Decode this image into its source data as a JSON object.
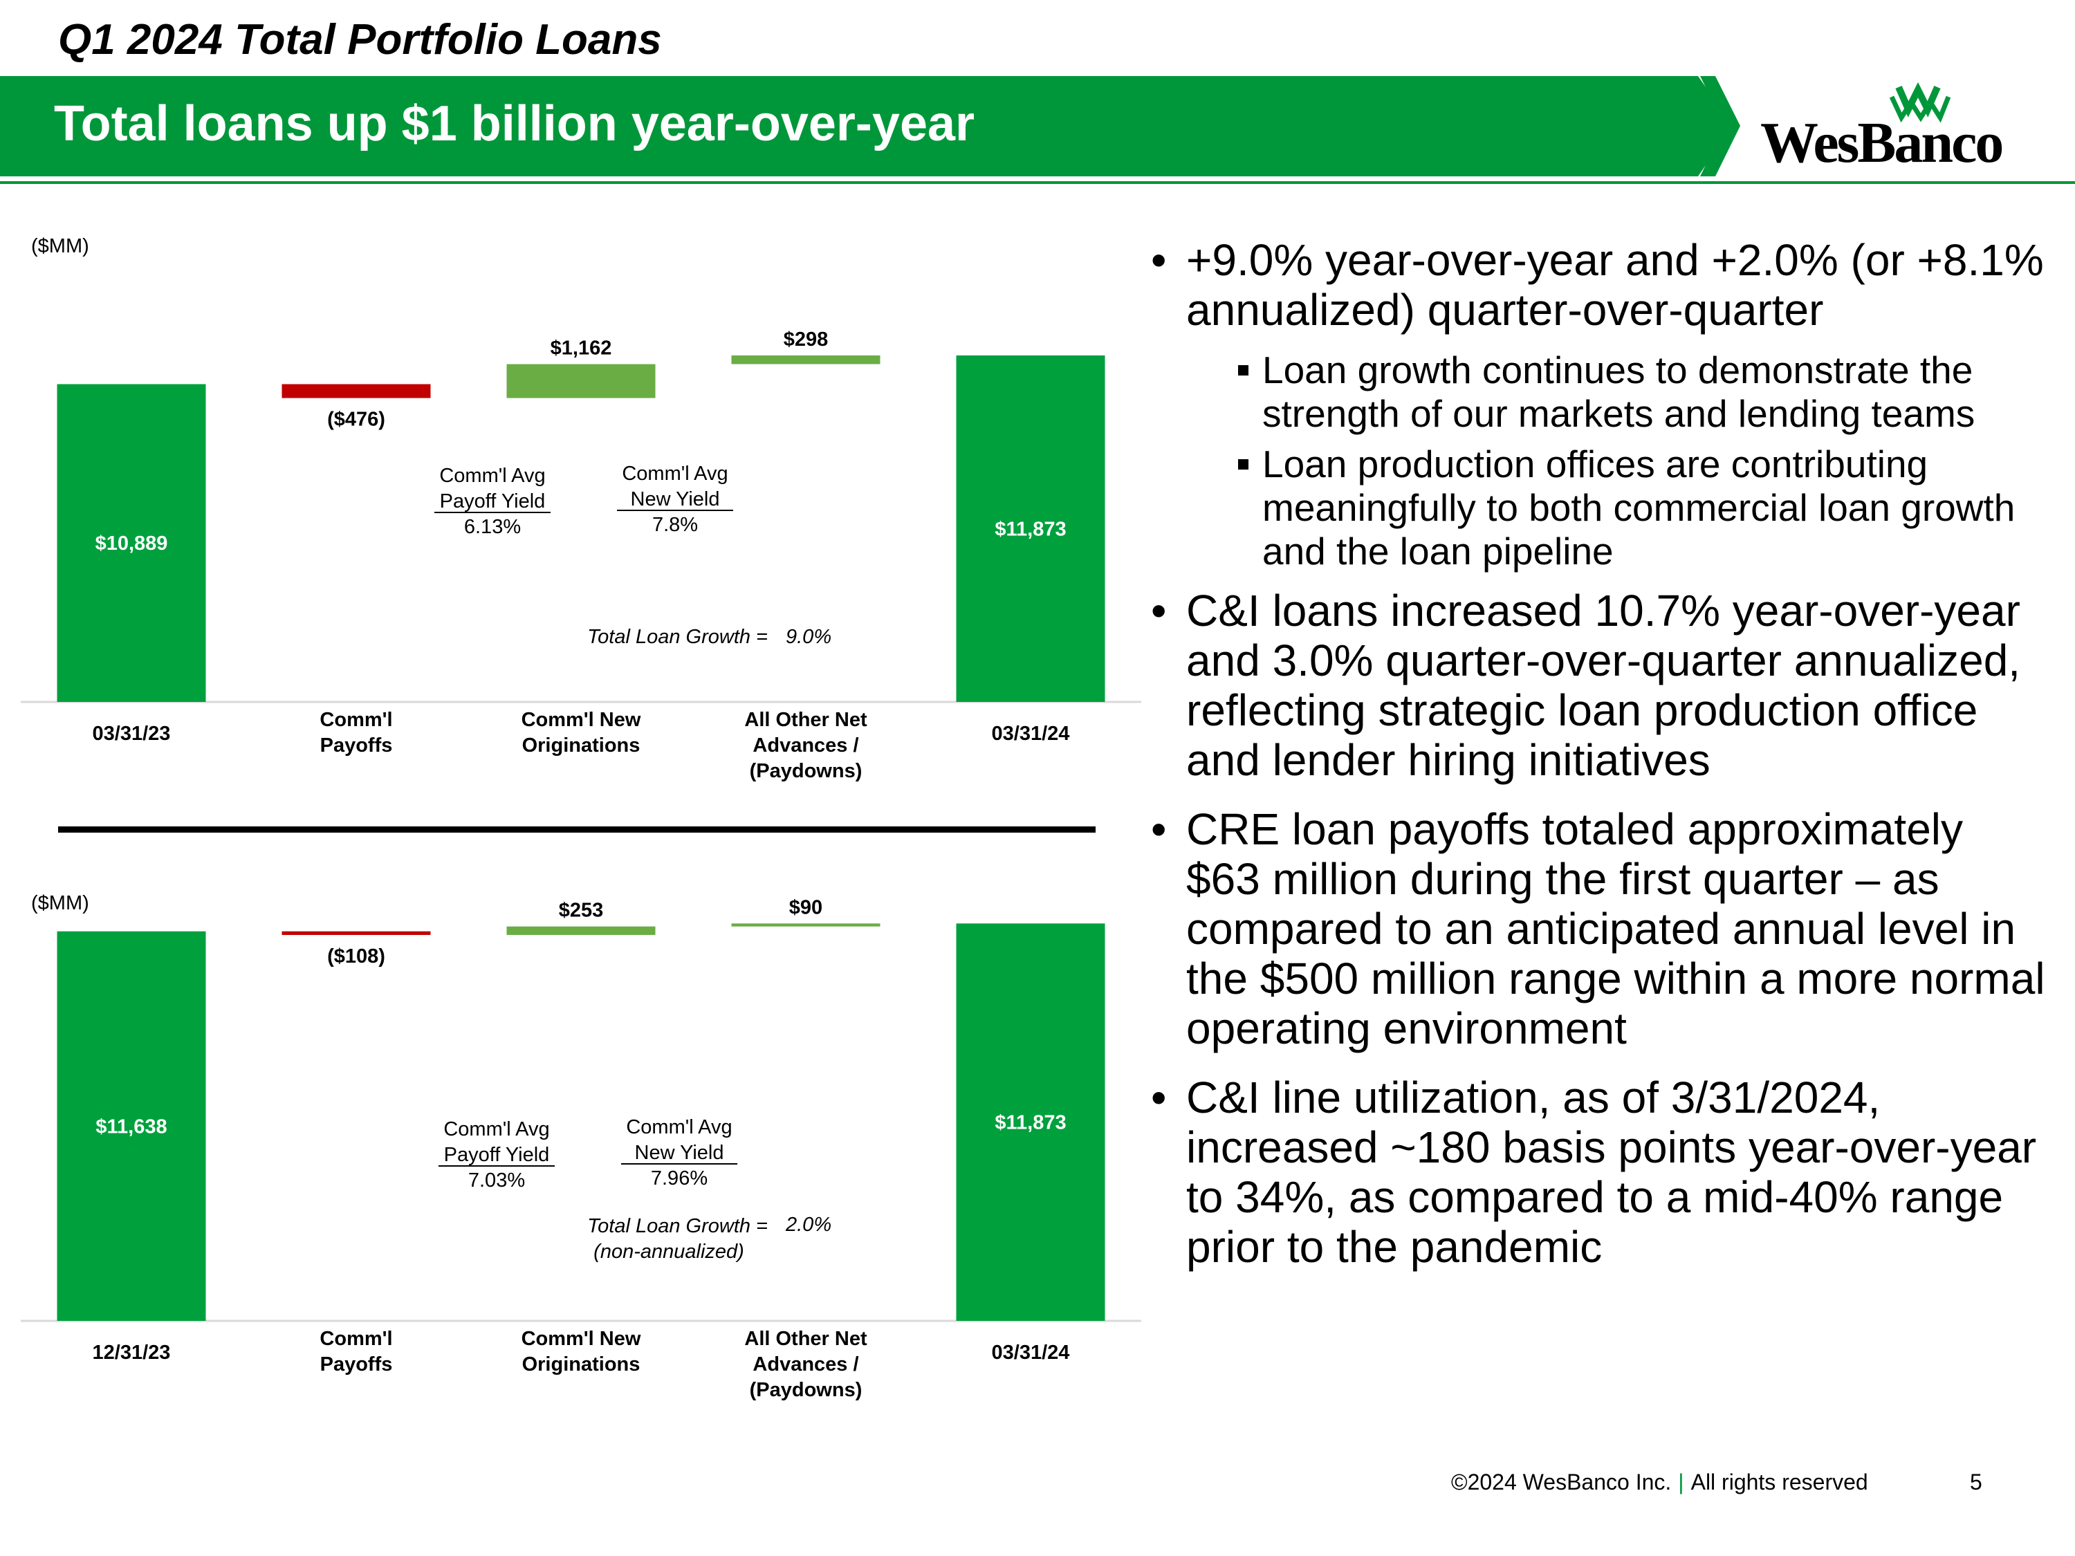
{
  "header": {
    "title": "Q1 2024 Total Portfolio Loans",
    "banner": "Total loans up $1 billion year-over-year",
    "logo_text": "WesBanco",
    "logo_icon": "wesbanco-w-mark-icon",
    "accent_color": "#00973a"
  },
  "chart_data": [
    {
      "type": "waterfall",
      "unit_label": "($MM)",
      "categories": [
        "03/31/23",
        "Comm'l Payoffs",
        "Comm'l New Originations",
        "All Other Net Advances / (Paydowns)",
        "03/31/24"
      ],
      "values": [
        10889,
        -476,
        1162,
        298,
        11873
      ],
      "data_labels": [
        "$10,889",
        "($476)",
        "$1,162",
        "$298",
        "$11,873"
      ],
      "colors": [
        "#00a03d",
        "#c00000",
        "#6bad45",
        "#6bad45",
        "#00a03d"
      ],
      "annotations": {
        "payoff_yield": [
          "Comm'l Avg",
          "Payoff Yield",
          "6.13%"
        ],
        "new_yield": [
          "Comm'l Avg",
          "New Yield",
          "7.8%"
        ],
        "growth_label": "Total Loan Growth =",
        "growth_sub": "",
        "growth_value": "9.0%"
      }
    },
    {
      "type": "waterfall",
      "unit_label": "($MM)",
      "categories": [
        "12/31/23",
        "Comm'l Payoffs",
        "Comm'l New Originations",
        "All Other Net Advances / (Paydowns)",
        "03/31/24"
      ],
      "values": [
        11638,
        -108,
        253,
        90,
        11873
      ],
      "data_labels": [
        "$11,638",
        "($108)",
        "$253",
        "$90",
        "$11,873"
      ],
      "colors": [
        "#00a03d",
        "#c00000",
        "#6bad45",
        "#6bad45",
        "#00a03d"
      ],
      "annotations": {
        "payoff_yield": [
          "Comm'l Avg",
          "Payoff Yield",
          "7.03%"
        ],
        "new_yield": [
          "Comm'l Avg",
          "New Yield",
          "7.96%"
        ],
        "growth_label": "Total Loan Growth =",
        "growth_sub": "(non-annualized)",
        "growth_value": "2.0%"
      }
    }
  ],
  "bullets": [
    {
      "text": "+9.0% year-over-year and +2.0% (or +8.1% annualized) quarter-over-quarter",
      "sub": [
        "Loan growth continues to demonstrate the strength of our markets and lending teams",
        "Loan production offices are contributing meaningfully to both commercial loan growth and the loan pipeline"
      ]
    },
    {
      "text": "C&I loans increased 10.7% year-over-year and 3.0% quarter-over-quarter annualized, reflecting strategic loan production office and lender hiring initiatives",
      "sub": []
    },
    {
      "text": "CRE loan payoffs totaled approximately $63 million during the first quarter – as compared to an anticipated annual level in the $500 million range within a more normal operating environment",
      "sub": []
    },
    {
      "text": "C&I line utilization, as of 3/31/2024, increased ~180 basis points year-over-year to 34%, as compared to a mid-40% range prior to the pandemic",
      "sub": []
    }
  ],
  "footer": {
    "copyright": "©2024 WesBanco Inc.",
    "separator": "|",
    "rights": "All rights reserved",
    "page": "5"
  }
}
